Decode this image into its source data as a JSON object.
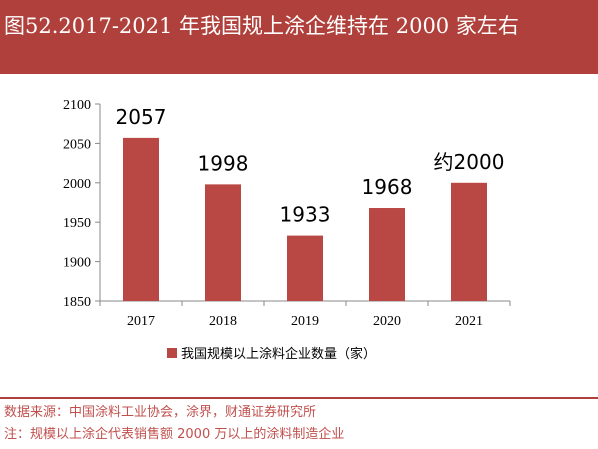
{
  "header": {
    "title": "图52.2017-2021 年我国规上涂企维持在 2000 家左右"
  },
  "colors": {
    "accent": "#b0403b",
    "bar": "#b94743",
    "source_text": "#c0504d"
  },
  "chart_data": {
    "type": "bar",
    "categories": [
      "2017",
      "2018",
      "2019",
      "2020",
      "2021"
    ],
    "series": [
      {
        "name": "我国规模以上涂料企业数量（家）",
        "values": [
          2057,
          1998,
          1933,
          1968,
          2000
        ]
      }
    ],
    "data_labels": [
      "2057",
      "1998",
      "1933",
      "1968",
      "约2000"
    ],
    "ylim": [
      1850,
      2100
    ],
    "yticks": [
      1850,
      1900,
      1950,
      2000,
      2050,
      2100
    ],
    "xlabel": "",
    "ylabel": "",
    "grid": false,
    "legend_position": "bottom"
  },
  "footer": {
    "source": "数据来源：中国涂料工业协会，涂界，财通证券研究所",
    "note": "注：规模以上涂企代表销售额 2000 万以上的涂料制造企业"
  }
}
